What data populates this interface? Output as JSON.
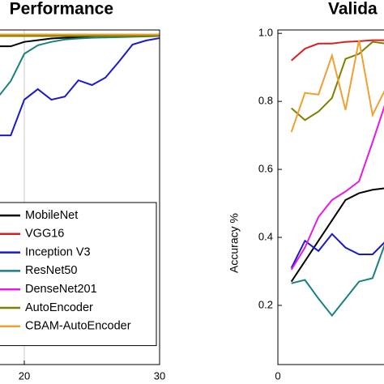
{
  "chart_data": [
    {
      "type": "line",
      "title": "Performance",
      "x": [
        18,
        19,
        20,
        21,
        22,
        23,
        24,
        25,
        26,
        27,
        28,
        29,
        30
      ],
      "xlim": [
        0,
        30
      ],
      "xticks": [
        20,
        30
      ],
      "ylim": [
        0.026,
        1.01
      ],
      "grid": true,
      "legend": "lower left",
      "series": [
        {
          "name": "MobileNet",
          "color": "#000000",
          "values": [
            0.962,
            0.962,
            0.975,
            0.98,
            0.985,
            0.987,
            0.988,
            0.989,
            0.99,
            0.99,
            0.991,
            0.992,
            0.993
          ]
        },
        {
          "name": "VGG16",
          "color": "#d62020",
          "values": [
            0.994,
            0.994,
            0.994,
            0.994,
            0.994,
            0.994,
            0.994,
            0.994,
            0.994,
            0.994,
            0.994,
            0.994,
            0.994
          ]
        },
        {
          "name": "Inception V3",
          "color": "#1a1acc",
          "values": [
            0.7,
            0.7,
            0.805,
            0.836,
            0.805,
            0.814,
            0.862,
            0.848,
            0.87,
            0.917,
            0.967,
            0.979,
            0.986
          ]
        },
        {
          "name": "ResNet50",
          "color": "#1a8080",
          "values": [
            0.81,
            0.86,
            0.94,
            0.965,
            0.975,
            0.982,
            0.985,
            0.987,
            0.988,
            0.989,
            0.99,
            0.991,
            0.992
          ]
        },
        {
          "name": "DenseNet201",
          "color": "#e619e6",
          "values": [
            0.995,
            0.995,
            0.995,
            0.995,
            0.995,
            0.995,
            0.995,
            0.995,
            0.995,
            0.995,
            0.995,
            0.995,
            0.995
          ]
        },
        {
          "name": "AutoEncoder",
          "color": "#808000",
          "values": [
            0.992,
            0.992,
            0.992,
            0.992,
            0.992,
            0.992,
            0.992,
            0.992,
            0.992,
            0.992,
            0.992,
            0.992,
            0.992
          ]
        },
        {
          "name": "CBAM-AutoEncoder",
          "color": "#f0a030",
          "values": [
            0.997,
            0.997,
            0.997,
            0.997,
            0.997,
            0.997,
            0.997,
            0.997,
            0.997,
            0.997,
            0.997,
            0.997,
            0.997
          ]
        }
      ]
    },
    {
      "type": "line",
      "title": "Valida",
      "y_label": "Accuracy %",
      "x": [
        1,
        2,
        3,
        4,
        5,
        6,
        7,
        8
      ],
      "xlim": [
        0,
        30
      ],
      "xticks": [
        0
      ],
      "ylim": [
        0.026,
        1.01
      ],
      "yticks": [
        0.2,
        0.4,
        0.6,
        0.8,
        {
          "value": 1,
          "label": "1.0"
        }
      ],
      "grid": false,
      "series": [
        {
          "color": "#000000",
          "values": [
            0.27,
            0.33,
            0.39,
            0.45,
            0.51,
            0.53,
            0.54,
            0.545
          ]
        },
        {
          "color": "#d62020",
          "values": [
            0.92,
            0.955,
            0.97,
            0.97,
            0.975,
            0.977,
            0.98,
            0.98
          ]
        },
        {
          "color": "#1a1acc",
          "values": [
            0.31,
            0.39,
            0.36,
            0.41,
            0.37,
            0.35,
            0.35,
            0.39
          ]
        },
        {
          "color": "#1a8080",
          "values": [
            0.265,
            0.275,
            0.22,
            0.17,
            0.22,
            0.27,
            0.28,
            0.39
          ]
        },
        {
          "color": "#e619e6",
          "values": [
            0.305,
            0.37,
            0.46,
            0.51,
            0.535,
            0.565,
            0.68,
            0.8
          ]
        },
        {
          "color": "#808000",
          "values": [
            0.78,
            0.745,
            0.77,
            0.81,
            0.925,
            0.94,
            0.975,
            0.97
          ]
        },
        {
          "color": "#f0a030",
          "values": [
            0.71,
            0.825,
            0.82,
            0.935,
            0.775,
            0.98,
            0.76,
            0.84
          ]
        }
      ]
    }
  ]
}
